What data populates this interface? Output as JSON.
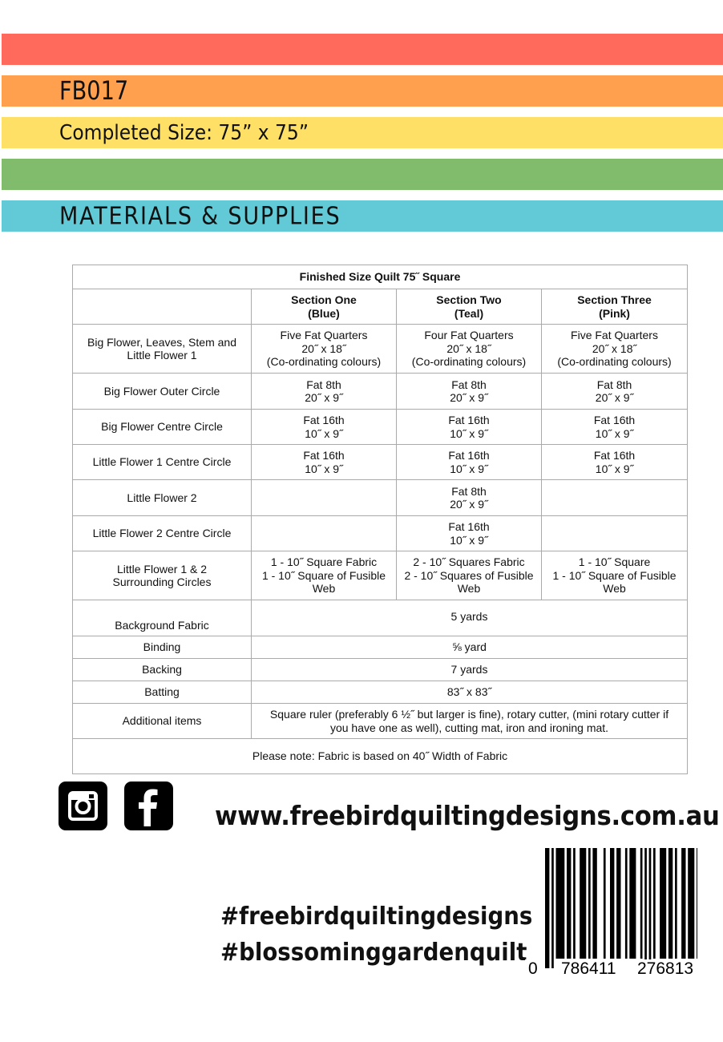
{
  "header": {
    "code": "FB017",
    "completed_size": "Completed Size: 75” x 75”",
    "section_title": "MATERIALS & SUPPLIES",
    "band_colors": [
      "#ff6a5c",
      "#ffa04f",
      "#ffe066",
      "#80bc6c",
      "#62cad7"
    ]
  },
  "table": {
    "title": "Finished Size Quilt 75˝ Square",
    "columns": [
      "",
      "Section One\n(Blue)",
      "Section Two\n(Teal)",
      "Section Three\n(Pink)"
    ],
    "rows": [
      {
        "label": "Big Flower, Leaves, Stem and\nLittle Flower 1",
        "cells": [
          "Five Fat Quarters\n20˝ x 18˝\n(Co-ordinating colours)",
          "Four Fat Quarters\n20˝ x 18˝\n(Co-ordinating colours)",
          "Five Fat Quarters\n20˝ x 18˝\n(Co-ordinating colours)"
        ]
      },
      {
        "label": "Big Flower Outer Circle",
        "cells": [
          "Fat 8th\n20˝ x 9˝",
          "Fat 8th\n20˝ x 9˝",
          "Fat 8th\n20˝ x 9˝"
        ]
      },
      {
        "label": "Big Flower Centre Circle",
        "cells": [
          "Fat 16th\n10˝ x 9˝",
          "Fat 16th\n10˝ x 9˝",
          "Fat 16th\n10˝ x 9˝"
        ]
      },
      {
        "label": "Little Flower 1 Centre Circle",
        "cells": [
          "Fat 16th\n10˝ x 9˝",
          "Fat 16th\n10˝ x 9˝",
          "Fat 16th\n10˝ x 9˝"
        ]
      },
      {
        "label": "Little Flower 2",
        "cells": [
          "",
          "Fat 8th\n20˝ x 9˝",
          ""
        ]
      },
      {
        "label": "Little Flower 2 Centre Circle",
        "cells": [
          "",
          "Fat 16th\n10˝ x 9˝",
          ""
        ]
      },
      {
        "label": "Little Flower 1 & 2\nSurrounding Circles",
        "cells": [
          "1 - 10˝ Square Fabric\n1 - 10˝ Square of Fusible Web",
          "2 - 10˝ Squares Fabric\n2 - 10˝ Squares of Fusible Web",
          "1 - 10˝ Square\n1 - 10˝ Square of Fusible Web"
        ]
      }
    ],
    "span_rows": [
      {
        "label": "Background Fabric",
        "value": "5 yards"
      },
      {
        "label": "Binding",
        "value": "⅝  yard"
      },
      {
        "label": "Backing",
        "value": "7  yards"
      },
      {
        "label": "Batting",
        "value": "83˝ x 83˝"
      },
      {
        "label": "Additional items",
        "value": "Square ruler (preferably 6 ½˝ but larger is fine), rotary cutter, (mini rotary cutter if you have one as well), cutting mat, iron and ironing mat."
      }
    ],
    "note": "Please note: Fabric is based on 40˝ Width of Fabric"
  },
  "footer": {
    "social_icons": [
      "instagram-icon",
      "facebook-icon"
    ],
    "website": "www.freebirdquiltingdesigns.com.au",
    "hashtags": [
      "#freebirdquiltingdesigns",
      "#blossominggardenquilt"
    ],
    "barcode_digits": [
      "0",
      "786411",
      "276813"
    ]
  }
}
